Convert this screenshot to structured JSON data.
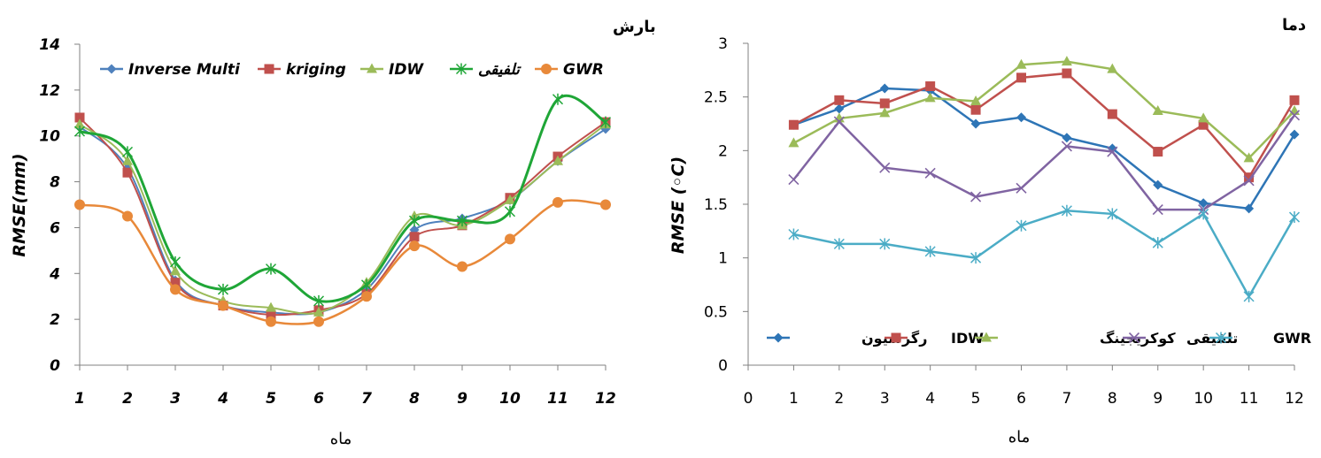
{
  "chart_data": [
    {
      "type": "line",
      "title": "بارش",
      "xlabel": "ماه",
      "ylabel": "RMSE(mm)",
      "x": [
        1,
        2,
        3,
        4,
        5,
        6,
        7,
        8,
        9,
        10,
        11,
        12
      ],
      "ylim": [
        0,
        14
      ],
      "yticks": [
        0,
        2,
        4,
        6,
        8,
        10,
        12,
        14
      ],
      "grid": false,
      "legend": "top",
      "smooth": true,
      "series": [
        {
          "name": "Inverse Multi",
          "color": "#4F81BD",
          "marker": "diamond",
          "values": [
            10.4,
            8.6,
            3.7,
            2.6,
            2.3,
            2.3,
            3.3,
            5.9,
            6.4,
            7.2,
            8.9,
            10.3
          ]
        },
        {
          "name": "kriging",
          "color": "#C0504D",
          "marker": "square",
          "values": [
            10.8,
            8.4,
            3.6,
            2.6,
            2.2,
            2.4,
            3.1,
            5.6,
            6.1,
            7.3,
            9.1,
            10.6
          ]
        },
        {
          "name": "IDW",
          "color": "#9BBB59",
          "marker": "triangle",
          "values": [
            10.5,
            8.9,
            4.1,
            2.8,
            2.5,
            2.3,
            3.6,
            6.5,
            6.1,
            7.2,
            8.9,
            10.5
          ]
        },
        {
          "name": "تلفیقی",
          "color": "#1FA637",
          "marker": "star",
          "values": [
            10.2,
            9.3,
            4.5,
            3.3,
            4.2,
            2.8,
            3.5,
            6.3,
            6.3,
            6.7,
            11.6,
            10.6
          ]
        },
        {
          "name": "GWR",
          "color": "#E8893A",
          "marker": "circle",
          "values": [
            7.0,
            6.5,
            3.3,
            2.6,
            1.9,
            1.9,
            3.0,
            5.2,
            4.3,
            5.5,
            7.1,
            7.0
          ]
        }
      ]
    },
    {
      "type": "line",
      "title": "دما",
      "xlabel": "ماه",
      "ylabel": "RMSE (◦C)",
      "x": [
        1,
        2,
        3,
        4,
        5,
        6,
        7,
        8,
        9,
        10,
        11,
        12
      ],
      "xlim": [
        0,
        12
      ],
      "xticks": [
        0,
        1,
        2,
        3,
        4,
        5,
        6,
        7,
        8,
        9,
        10,
        11,
        12
      ],
      "ylim": [
        0,
        3
      ],
      "yticks": [
        "0",
        "0.5",
        "1",
        "1.5",
        "2",
        "2.5",
        "3"
      ],
      "grid": false,
      "legend": "bottom",
      "smooth": false,
      "series": [
        {
          "name": "رگرسیون",
          "color": "#2E75B6",
          "marker": "diamond",
          "values": [
            2.24,
            2.39,
            2.58,
            2.56,
            2.25,
            2.31,
            2.12,
            2.02,
            1.68,
            1.51,
            1.46,
            2.15
          ]
        },
        {
          "name": "IDW",
          "color": "#C0504D",
          "marker": "square",
          "values": [
            2.24,
            2.47,
            2.44,
            2.6,
            2.38,
            2.68,
            2.72,
            2.34,
            1.99,
            2.24,
            1.75,
            2.47
          ]
        },
        {
          "name": "کوکریجینگ",
          "color": "#9BBB59",
          "marker": "triangle",
          "values": [
            2.07,
            2.3,
            2.35,
            2.49,
            2.46,
            2.8,
            2.83,
            2.76,
            2.37,
            2.3,
            1.93,
            2.37
          ]
        },
        {
          "name": "تلفیقی",
          "color": "#8064A2",
          "marker": "x",
          "values": [
            1.73,
            2.27,
            1.84,
            1.79,
            1.57,
            1.65,
            2.04,
            1.99,
            1.45,
            1.45,
            1.72,
            2.33
          ]
        },
        {
          "name": "GWR",
          "color": "#4BACC6",
          "marker": "star",
          "values": [
            1.22,
            1.13,
            1.13,
            1.06,
            1.0,
            1.3,
            1.44,
            1.41,
            1.14,
            1.41,
            0.64,
            1.38
          ]
        }
      ]
    }
  ]
}
